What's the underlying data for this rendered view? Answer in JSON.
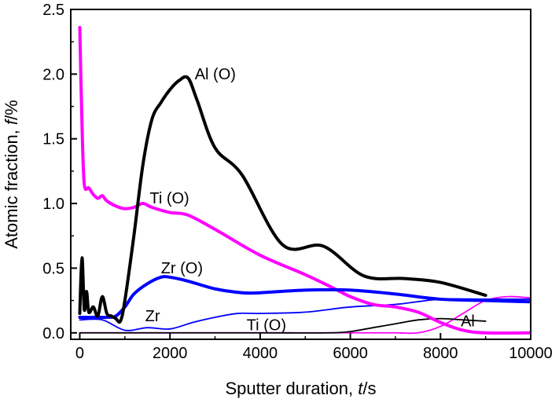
{
  "chart_data": {
    "type": "line",
    "title": "",
    "xlabel": "Sputter duration, t/s",
    "ylabel": "Atomic fraction, f/%",
    "xlabel_parts": [
      "Sputter duration, ",
      "t",
      "/s"
    ],
    "ylabel_parts": [
      "Atomic fraction, ",
      "f",
      "/%"
    ],
    "xlim": [
      -200,
      10000
    ],
    "ylim": [
      -0.05,
      2.5
    ],
    "xticks": [
      0,
      2000,
      4000,
      6000,
      8000,
      10000
    ],
    "yticks": [
      0.0,
      0.5,
      1.0,
      1.5,
      2.0,
      2.5
    ],
    "xtick_labels": [
      "0",
      "2000",
      "4000",
      "6000",
      "8000",
      "10000"
    ],
    "ytick_labels": [
      "0.0",
      "0.5",
      "1.0",
      "1.5",
      "2.0",
      "2.5"
    ],
    "grid": false,
    "legend": "none",
    "series": [
      {
        "name": "Al (O)",
        "color": "#000000",
        "width": 4,
        "x": [
          0,
          50,
          100,
          150,
          200,
          300,
          400,
          500,
          600,
          700,
          800,
          900,
          1000,
          1200,
          1400,
          1600,
          1800,
          2000,
          2200,
          2400,
          2600,
          3000,
          3600,
          4500,
          5400,
          6300,
          7200,
          8000,
          9000
        ],
        "y": [
          0.15,
          0.58,
          0.18,
          0.32,
          0.16,
          0.2,
          0.13,
          0.28,
          0.15,
          0.13,
          0.11,
          0.09,
          0.25,
          0.75,
          1.3,
          1.65,
          1.78,
          1.88,
          1.95,
          1.97,
          1.8,
          1.43,
          1.22,
          0.68,
          0.67,
          0.44,
          0.42,
          0.39,
          0.29
        ]
      },
      {
        "name": "Ti (O)",
        "color": "#ff00ff",
        "width": 4,
        "x": [
          0,
          50,
          100,
          200,
          300,
          400,
          500,
          600,
          800,
          1000,
          1200,
          1400,
          1600,
          2000,
          2400,
          3000,
          4000,
          5000,
          5600,
          6000,
          6500,
          7000,
          7500,
          8000,
          8500,
          9000,
          10000
        ],
        "y": [
          2.36,
          1.6,
          1.15,
          1.12,
          1.07,
          1.04,
          1.06,
          1.02,
          0.98,
          0.96,
          0.97,
          1.0,
          0.97,
          0.93,
          0.91,
          0.8,
          0.6,
          0.45,
          0.35,
          0.28,
          0.22,
          0.2,
          0.16,
          0.08,
          0.02,
          0.0,
          0.0
        ]
      },
      {
        "name": "Zr (O)",
        "color": "#0000ff",
        "width": 4,
        "x": [
          0,
          200,
          400,
          600,
          800,
          1000,
          1200,
          1500,
          1800,
          2000,
          2400,
          3000,
          3600,
          4000,
          5000,
          6000,
          7000,
          8000,
          9000,
          10000
        ],
        "y": [
          0.12,
          0.12,
          0.12,
          0.12,
          0.13,
          0.2,
          0.3,
          0.38,
          0.43,
          0.43,
          0.4,
          0.34,
          0.31,
          0.31,
          0.33,
          0.33,
          0.3,
          0.26,
          0.25,
          0.24
        ]
      },
      {
        "name": "Zr",
        "color": "#0000ff",
        "width": 1.8,
        "x": [
          0,
          500,
          1000,
          1500,
          2000,
          2500,
          3000,
          3500,
          4000,
          5000,
          6000,
          7000,
          8000,
          9000,
          10000
        ],
        "y": [
          0.1,
          0.1,
          0.02,
          0.04,
          0.03,
          0.08,
          0.12,
          0.15,
          0.15,
          0.16,
          0.2,
          0.22,
          0.26,
          0.26,
          0.26
        ]
      },
      {
        "name": "Ti (O)",
        "color": "#ff00ff",
        "width": 1.8,
        "x": [
          0,
          2000,
          4000,
          6000,
          7000,
          7500,
          8000,
          8500,
          9000,
          9500,
          10000
        ],
        "y": [
          0.0,
          0.0,
          0.0,
          0.0,
          0.0,
          0.0,
          0.05,
          0.15,
          0.25,
          0.28,
          0.27
        ]
      },
      {
        "name": "Al",
        "color": "#000000",
        "width": 1.8,
        "x": [
          0,
          2000,
          4000,
          5500,
          6000,
          6500,
          7000,
          7500,
          8000,
          8500,
          9000
        ],
        "y": [
          0.0,
          0.0,
          0.0,
          0.0,
          0.01,
          0.04,
          0.07,
          0.1,
          0.11,
          0.1,
          0.09
        ]
      }
    ],
    "annotations": [
      {
        "text": "Al (O)",
        "x": 2550,
        "y": 1.96
      },
      {
        "text": "Ti (O)",
        "x": 1550,
        "y": 1.0
      },
      {
        "text": "Zr (O)",
        "x": 1800,
        "y": 0.46
      },
      {
        "text": "Zr",
        "x": 1450,
        "y": 0.09
      },
      {
        "text": "Ti (O)",
        "x": 3700,
        "y": 0.02
      },
      {
        "text": "Al",
        "x": 8450,
        "y": 0.05
      }
    ]
  }
}
